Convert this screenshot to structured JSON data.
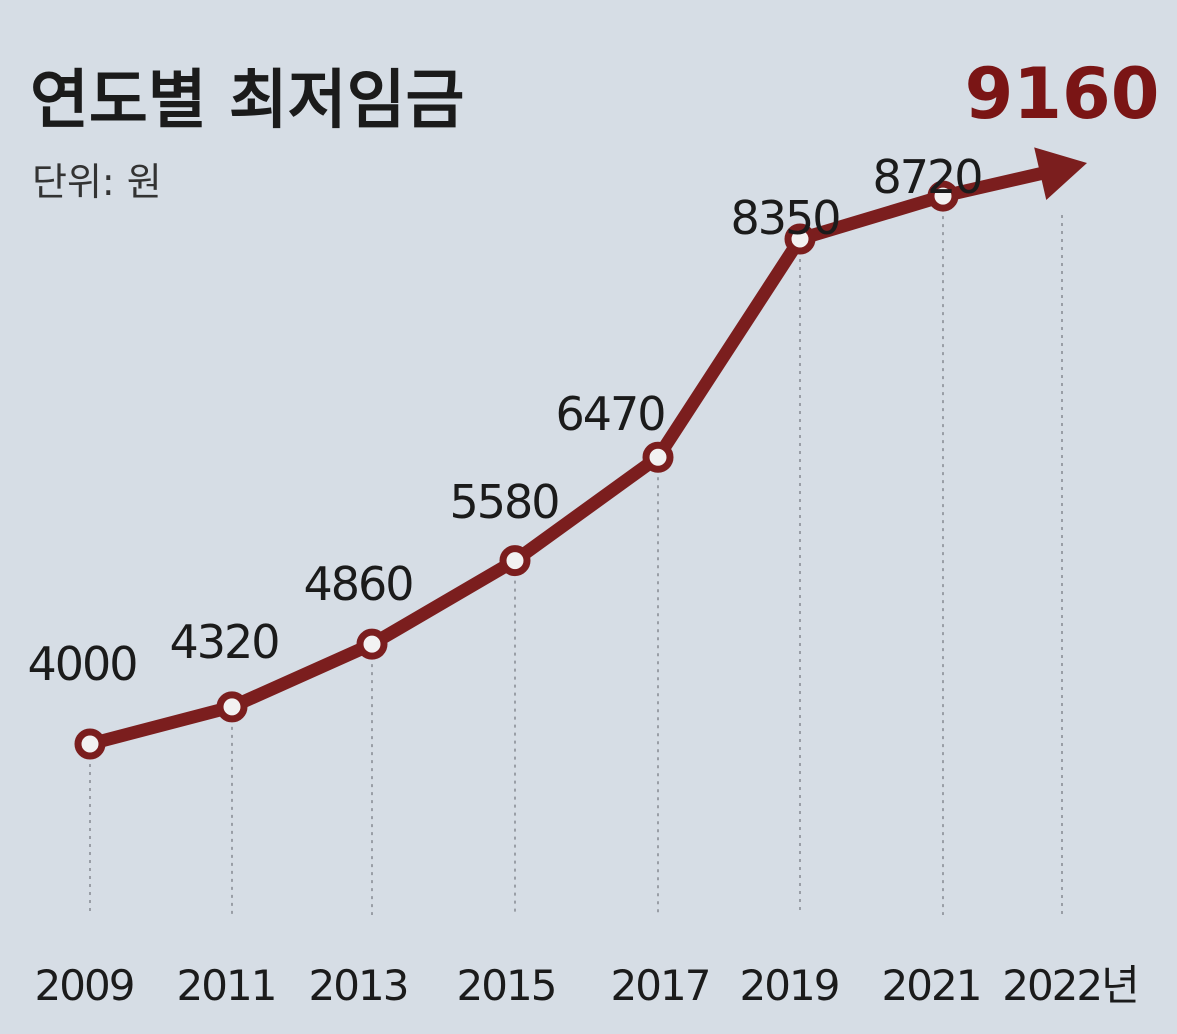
{
  "header": {
    "title": "연도별 최저임금",
    "unit": "단위: 원",
    "highlight_value": "9160"
  },
  "colors": {
    "background": "#d6dde5",
    "line": "#7b1e1e",
    "highlight_text": "#7a1515",
    "label_text": "#1b1b1b",
    "marker_fill": "#f2f2f2",
    "guide": "#8a8f96"
  },
  "chart_data": {
    "type": "line",
    "title": "연도별 최저임금",
    "subtitle": "단위: 원",
    "x": [
      "2009",
      "2011",
      "2013",
      "2015",
      "2017",
      "2019",
      "2021",
      "2022년"
    ],
    "series": [
      {
        "values": [
          4000,
          4320,
          4860,
          5580,
          6470,
          8350,
          8720,
          9160
        ],
        "point_labels": [
          "4000",
          "4320",
          "4860",
          "5580",
          "6470",
          "8350",
          "8720",
          "9160"
        ]
      }
    ],
    "last_point_marker": "arrow",
    "grid": false,
    "guides": "vertical dotted lines from each point to x axis"
  }
}
